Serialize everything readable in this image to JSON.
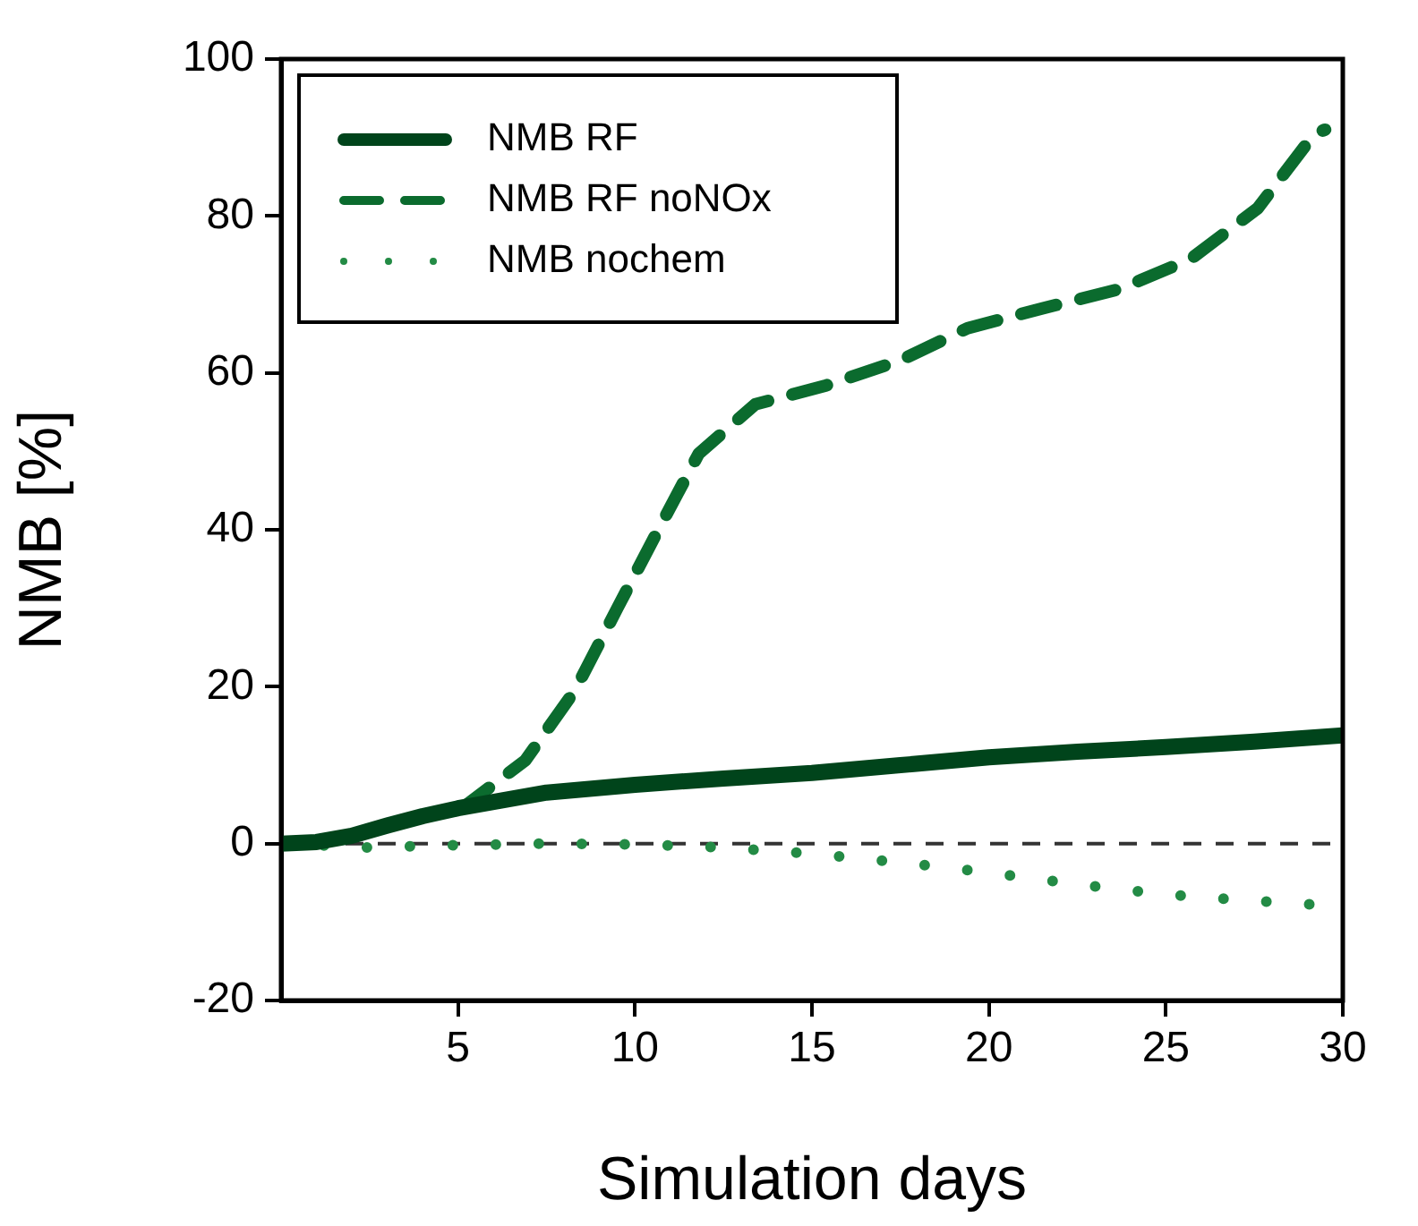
{
  "chart_data": {
    "type": "line",
    "xlabel": "Simulation days",
    "ylabel": "NMB [%]",
    "xlim": [
      0,
      30
    ],
    "xticks": [
      5,
      10,
      15,
      20,
      25,
      30
    ],
    "ylim": [
      -20,
      100
    ],
    "yticks": [
      -20,
      0,
      20,
      40,
      60,
      80,
      100
    ],
    "grid": false,
    "legend": "top left",
    "marker": "none",
    "series": [
      {
        "name": "NMB RF",
        "color": "#00441b",
        "line_style": "solid",
        "x": [
          0,
          1,
          2,
          3,
          4,
          5,
          6,
          7.5,
          10,
          12.5,
          15,
          17.5,
          20,
          22.5,
          25,
          27.5,
          30
        ],
        "values": [
          0,
          0.2,
          1,
          2.3,
          3.5,
          4.5,
          5.3,
          6.5,
          7.5,
          8.3,
          9,
          10,
          11,
          11.7,
          12.3,
          13,
          13.8
        ]
      },
      {
        "name": "NMB RF noNOx",
        "color": "#0b6b2e",
        "line_style": "dashed",
        "x": [
          0,
          1,
          2,
          3,
          4,
          5.2,
          6.9,
          8.3,
          9.5,
          10.6,
          11.8,
          13.4,
          15.4,
          17.5,
          19.4,
          21.5,
          23.7,
          25.7,
          27.6,
          29.2,
          29.5
        ],
        "values": [
          0,
          0.2,
          1,
          2.3,
          3.5,
          4.8,
          10.6,
          19.5,
          30,
          39.5,
          49.7,
          56,
          58.4,
          61.6,
          65.7,
          68.2,
          70.7,
          74.5,
          81,
          90.5,
          91
        ]
      },
      {
        "name": "NMB nochem",
        "color": "#238b45",
        "line_style": "dotted",
        "x": [
          0,
          2.5,
          5,
          7.5,
          10,
          12.5,
          15,
          17.5,
          20,
          22.5,
          25,
          27.5,
          30
        ],
        "values": [
          0,
          -0.5,
          -0.2,
          0,
          -0.1,
          -0.5,
          -1.3,
          -2.4,
          -3.7,
          -5.2,
          -6.5,
          -7.3,
          -8
        ]
      }
    ],
    "ref_lines": [
      {
        "axis": "y",
        "value": 0,
        "color": "#333333",
        "line_style": "dashed"
      }
    ]
  }
}
